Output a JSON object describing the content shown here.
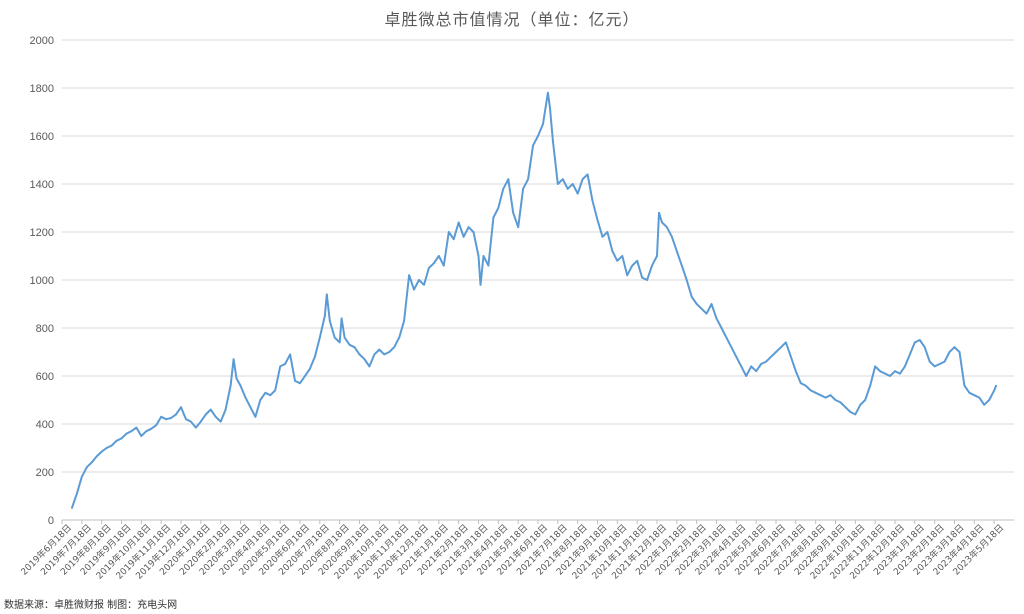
{
  "chart_data": {
    "type": "line",
    "title": "卓胜微总市值情况（单位：亿元）",
    "xlabel": "",
    "ylabel": "",
    "ylim": [
      0,
      2000
    ],
    "yticks": [
      "0",
      "200",
      "400",
      "600",
      "800",
      "1000",
      "1200",
      "1400",
      "1600",
      "1800",
      "2000"
    ],
    "grid": true,
    "legend": "none",
    "line_color": "#5B9BD5",
    "grid_color": "#D9D9D9",
    "source_note": "数据来源：卓胜微财报 制图：充电头网",
    "x_tick_labels": [
      "2019年6月18日",
      "2019年7月18日",
      "2019年8月18日",
      "2019年9月18日",
      "2019年10月18日",
      "2019年11月18日",
      "2019年12月18日",
      "2020年1月18日",
      "2020年2月18日",
      "2020年3月18日",
      "2020年4月18日",
      "2020年5月18日",
      "2020年6月18日",
      "2020年7月18日",
      "2020年8月18日",
      "2020年9月18日",
      "2020年10月18日",
      "2020年11月18日",
      "2020年12月18日",
      "2021年1月18日",
      "2021年2月18日",
      "2021年3月18日",
      "2021年4月18日",
      "2021年5月18日",
      "2021年6月18日",
      "2021年7月18日",
      "2021年8月18日",
      "2021年9月18日",
      "2021年10月18日",
      "2021年11月18日",
      "2021年12月18日",
      "2022年1月18日",
      "2022年2月18日",
      "2022年3月18日",
      "2022年4月18日",
      "2022年5月18日",
      "2022年6月18日",
      "2022年7月18日",
      "2022年8月18日",
      "2022年9月18日",
      "2022年10月18日",
      "2022年11月18日",
      "2022年12月18日",
      "2023年1月18日",
      "2023年2月18日",
      "2023年3月18日",
      "2023年4月18日",
      "2023年5月18日"
    ],
    "series": [
      {
        "values": [
          [
            0,
            50
          ],
          [
            0.25,
            110
          ],
          [
            0.5,
            180
          ],
          [
            0.75,
            220
          ],
          [
            1,
            240
          ],
          [
            1.25,
            265
          ],
          [
            1.5,
            285
          ],
          [
            1.75,
            300
          ],
          [
            2,
            310
          ],
          [
            2.25,
            330
          ],
          [
            2.5,
            340
          ],
          [
            2.75,
            360
          ],
          [
            3,
            370
          ],
          [
            3.25,
            385
          ],
          [
            3.5,
            350
          ],
          [
            3.75,
            370
          ],
          [
            4,
            380
          ],
          [
            4.25,
            395
          ],
          [
            4.5,
            430
          ],
          [
            4.75,
            420
          ],
          [
            5,
            425
          ],
          [
            5.25,
            440
          ],
          [
            5.5,
            470
          ],
          [
            5.75,
            420
          ],
          [
            6,
            410
          ],
          [
            6.25,
            385
          ],
          [
            6.5,
            410
          ],
          [
            6.75,
            440
          ],
          [
            7,
            460
          ],
          [
            7.25,
            430
          ],
          [
            7.5,
            410
          ],
          [
            7.75,
            460
          ],
          [
            8,
            560
          ],
          [
            8.15,
            670
          ],
          [
            8.3,
            590
          ],
          [
            8.5,
            560
          ],
          [
            8.75,
            510
          ],
          [
            9,
            470
          ],
          [
            9.25,
            430
          ],
          [
            9.5,
            500
          ],
          [
            9.75,
            530
          ],
          [
            10,
            520
          ],
          [
            10.25,
            540
          ],
          [
            10.5,
            640
          ],
          [
            10.75,
            650
          ],
          [
            11,
            690
          ],
          [
            11.25,
            580
          ],
          [
            11.5,
            570
          ],
          [
            11.75,
            600
          ],
          [
            12,
            630
          ],
          [
            12.25,
            680
          ],
          [
            12.5,
            760
          ],
          [
            12.75,
            850
          ],
          [
            12.85,
            940
          ],
          [
            13,
            830
          ],
          [
            13.25,
            760
          ],
          [
            13.5,
            740
          ],
          [
            13.6,
            840
          ],
          [
            13.75,
            760
          ],
          [
            14,
            730
          ],
          [
            14.25,
            720
          ],
          [
            14.5,
            690
          ],
          [
            14.75,
            670
          ],
          [
            15,
            640
          ],
          [
            15.25,
            690
          ],
          [
            15.5,
            710
          ],
          [
            15.75,
            690
          ],
          [
            16,
            700
          ],
          [
            16.25,
            720
          ],
          [
            16.5,
            760
          ],
          [
            16.75,
            830
          ],
          [
            17,
            1020
          ],
          [
            17.25,
            960
          ],
          [
            17.5,
            1000
          ],
          [
            17.75,
            980
          ],
          [
            18,
            1050
          ],
          [
            18.25,
            1070
          ],
          [
            18.5,
            1100
          ],
          [
            18.75,
            1060
          ],
          [
            19,
            1200
          ],
          [
            19.25,
            1170
          ],
          [
            19.5,
            1240
          ],
          [
            19.75,
            1180
          ],
          [
            20,
            1220
          ],
          [
            20.25,
            1200
          ],
          [
            20.5,
            1100
          ],
          [
            20.6,
            980
          ],
          [
            20.75,
            1100
          ],
          [
            21,
            1060
          ],
          [
            21.25,
            1260
          ],
          [
            21.5,
            1300
          ],
          [
            21.75,
            1380
          ],
          [
            22,
            1420
          ],
          [
            22.25,
            1280
          ],
          [
            22.5,
            1220
          ],
          [
            22.75,
            1380
          ],
          [
            23,
            1420
          ],
          [
            23.25,
            1560
          ],
          [
            23.5,
            1600
          ],
          [
            23.75,
            1650
          ],
          [
            24,
            1780
          ],
          [
            24.1,
            1720
          ],
          [
            24.25,
            1580
          ],
          [
            24.5,
            1400
          ],
          [
            24.75,
            1420
          ],
          [
            25,
            1380
          ],
          [
            25.25,
            1400
          ],
          [
            25.5,
            1360
          ],
          [
            25.75,
            1420
          ],
          [
            26,
            1440
          ],
          [
            26.25,
            1330
          ],
          [
            26.5,
            1250
          ],
          [
            26.75,
            1180
          ],
          [
            27,
            1200
          ],
          [
            27.25,
            1120
          ],
          [
            27.5,
            1080
          ],
          [
            27.75,
            1100
          ],
          [
            28,
            1020
          ],
          [
            28.25,
            1060
          ],
          [
            28.5,
            1080
          ],
          [
            28.75,
            1010
          ],
          [
            29,
            1000
          ],
          [
            29.25,
            1060
          ],
          [
            29.5,
            1100
          ],
          [
            29.6,
            1280
          ],
          [
            29.75,
            1240
          ],
          [
            30,
            1220
          ],
          [
            30.25,
            1180
          ],
          [
            30.5,
            1120
          ],
          [
            30.75,
            1060
          ],
          [
            31,
            1000
          ],
          [
            31.25,
            930
          ],
          [
            31.5,
            900
          ],
          [
            31.75,
            880
          ],
          [
            32,
            860
          ],
          [
            32.25,
            900
          ],
          [
            32.5,
            840
          ],
          [
            32.75,
            800
          ],
          [
            33,
            760
          ],
          [
            33.25,
            720
          ],
          [
            33.5,
            680
          ],
          [
            33.75,
            640
          ],
          [
            34,
            600
          ],
          [
            34.25,
            640
          ],
          [
            34.5,
            620
          ],
          [
            34.75,
            650
          ],
          [
            35,
            660
          ],
          [
            35.25,
            680
          ],
          [
            35.5,
            700
          ],
          [
            35.75,
            720
          ],
          [
            36,
            740
          ],
          [
            36.25,
            680
          ],
          [
            36.5,
            620
          ],
          [
            36.75,
            570
          ],
          [
            37,
            560
          ],
          [
            37.25,
            540
          ],
          [
            37.5,
            530
          ],
          [
            37.75,
            520
          ],
          [
            38,
            510
          ],
          [
            38.25,
            520
          ],
          [
            38.5,
            500
          ],
          [
            38.75,
            490
          ],
          [
            39,
            470
          ],
          [
            39.25,
            450
          ],
          [
            39.5,
            440
          ],
          [
            39.75,
            480
          ],
          [
            40,
            500
          ],
          [
            40.25,
            560
          ],
          [
            40.5,
            640
          ],
          [
            40.75,
            620
          ],
          [
            41,
            610
          ],
          [
            41.25,
            600
          ],
          [
            41.5,
            620
          ],
          [
            41.75,
            610
          ],
          [
            42,
            640
          ],
          [
            42.25,
            690
          ],
          [
            42.5,
            740
          ],
          [
            42.75,
            750
          ],
          [
            43,
            720
          ],
          [
            43.25,
            660
          ],
          [
            43.5,
            640
          ],
          [
            43.75,
            650
          ],
          [
            44,
            660
          ],
          [
            44.25,
            700
          ],
          [
            44.5,
            720
          ],
          [
            44.75,
            700
          ],
          [
            45,
            560
          ],
          [
            45.25,
            530
          ],
          [
            45.5,
            520
          ],
          [
            45.75,
            510
          ],
          [
            46,
            480
          ],
          [
            46.25,
            500
          ],
          [
            46.5,
            540
          ],
          [
            46.6,
            560
          ]
        ]
      }
    ]
  }
}
